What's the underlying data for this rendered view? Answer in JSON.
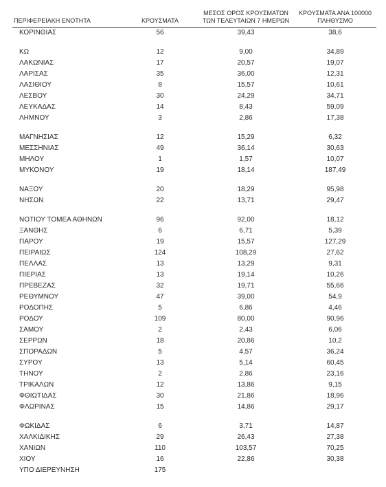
{
  "table": {
    "headers": {
      "region": "ΠΕΡΙΦΕΡΕΙΑΚΗ ΕΝΟΤΗΤΑ",
      "cases": "ΚΡΟΥΣΜΑΤΑ",
      "avg7": "ΜΕΣΟΣ ΟΡΟΣ ΚΡΟΥΣΜΑΤΩΝ ΤΩΝ ΤΕΛΕΥΤΑΙΩΝ 7 ΗΜΕΡΩΝ",
      "per100k": "ΚΡΟΥΣΜΑΤΑ ΑΝΑ 100000 ΠΛΗΘΥΣΜΟ"
    },
    "groups": [
      [
        {
          "region": "ΚΟΡΙΝΘΙΑΣ",
          "cases": "56",
          "avg7": "39,43",
          "per100k": "38,6"
        }
      ],
      [
        {
          "region": "ΚΩ",
          "cases": "12",
          "avg7": "9,00",
          "per100k": "34,89"
        },
        {
          "region": "ΛΑΚΩΝΙΑΣ",
          "cases": "17",
          "avg7": "20,57",
          "per100k": "19,07"
        },
        {
          "region": "ΛΑΡΙΣΑΣ",
          "cases": "35",
          "avg7": "36,00",
          "per100k": "12,31"
        },
        {
          "region": "ΛΑΣΙΘΙΟΥ",
          "cases": "8",
          "avg7": "15,57",
          "per100k": "10,61"
        },
        {
          "region": "ΛΕΣΒΟΥ",
          "cases": "30",
          "avg7": "24,29",
          "per100k": "34,71"
        },
        {
          "region": "ΛΕΥΚΑΔΑΣ",
          "cases": "14",
          "avg7": "8,43",
          "per100k": "59,09"
        },
        {
          "region": "ΛΗΜΝΟΥ",
          "cases": "3",
          "avg7": "2,86",
          "per100k": "17,38"
        }
      ],
      [
        {
          "region": "ΜΑΓΝΗΣΙΑΣ",
          "cases": "12",
          "avg7": "15,29",
          "per100k": "6,32"
        },
        {
          "region": "ΜΕΣΣΗΝΙΑΣ",
          "cases": "49",
          "avg7": "36,14",
          "per100k": "30,63"
        },
        {
          "region": "ΜΗΛΟΥ",
          "cases": "1",
          "avg7": "1,57",
          "per100k": "10,07"
        },
        {
          "region": "ΜΥΚΟΝΟΥ",
          "cases": "19",
          "avg7": "18,14",
          "per100k": "187,49"
        }
      ],
      [
        {
          "region": "ΝΑΞΟΥ",
          "cases": "20",
          "avg7": "18,29",
          "per100k": "95,98"
        },
        {
          "region": "ΝΗΣΩΝ",
          "cases": "22",
          "avg7": "13,71",
          "per100k": "29,47"
        }
      ],
      [
        {
          "region": "ΝΟΤΙΟΥ ΤΟΜΕΑ ΑΘΗΝΩΝ",
          "cases": "96",
          "avg7": "92,00",
          "per100k": "18,12"
        },
        {
          "region": "ΞΑΝΘΗΣ",
          "cases": "6",
          "avg7": "6,71",
          "per100k": "5,39"
        },
        {
          "region": "ΠΑΡΟΥ",
          "cases": "19",
          "avg7": "15,57",
          "per100k": "127,29"
        },
        {
          "region": "ΠΕΙΡΑΙΩΣ",
          "cases": "124",
          "avg7": "108,29",
          "per100k": "27,62"
        },
        {
          "region": "ΠΕΛΛΑΣ",
          "cases": "13",
          "avg7": "13,29",
          "per100k": "9,31"
        },
        {
          "region": "ΠΙΕΡΙΑΣ",
          "cases": "13",
          "avg7": "19,14",
          "per100k": "10,26"
        },
        {
          "region": "ΠΡΕΒΕΖΑΣ",
          "cases": "32",
          "avg7": "19,71",
          "per100k": "55,66"
        },
        {
          "region": "ΡΕΘΥΜΝΟΥ",
          "cases": "47",
          "avg7": "39,00",
          "per100k": "54,9"
        },
        {
          "region": "ΡΟΔΟΠΗΣ",
          "cases": "5",
          "avg7": "6,86",
          "per100k": "4,46"
        },
        {
          "region": "ΡΟΔΟΥ",
          "cases": "109",
          "avg7": "80,00",
          "per100k": "90,96"
        },
        {
          "region": "ΣΑΜΟΥ",
          "cases": "2",
          "avg7": "2,43",
          "per100k": "6,06"
        },
        {
          "region": "ΣΕΡΡΩΝ",
          "cases": "18",
          "avg7": "20,86",
          "per100k": "10,2"
        },
        {
          "region": "ΣΠΟΡΑΔΩΝ",
          "cases": "5",
          "avg7": "4,57",
          "per100k": "36,24"
        },
        {
          "region": "ΣΥΡΟΥ",
          "cases": "13",
          "avg7": "5,14",
          "per100k": "60,45"
        },
        {
          "region": "ΤΗΝΟΥ",
          "cases": "2",
          "avg7": "2,86",
          "per100k": "23,16"
        },
        {
          "region": "ΤΡΙΚΑΛΩΝ",
          "cases": "12",
          "avg7": "13,86",
          "per100k": "9,15"
        },
        {
          "region": "ΦΘΙΩΤΙΔΑΣ",
          "cases": "30",
          "avg7": "21,86",
          "per100k": "18,96"
        },
        {
          "region": "ΦΛΩΡΙΝΑΣ",
          "cases": "15",
          "avg7": "14,86",
          "per100k": "29,17"
        }
      ],
      [
        {
          "region": "ΦΩΚΙΔΑΣ",
          "cases": "6",
          "avg7": "3,71",
          "per100k": "14,87"
        },
        {
          "region": "ΧΑΛΚΙΔΙΚΗΣ",
          "cases": "29",
          "avg7": "26,43",
          "per100k": "27,38"
        },
        {
          "region": "ΧΑΝΙΩΝ",
          "cases": "110",
          "avg7": "103,57",
          "per100k": "70,25"
        },
        {
          "region": "ΧΙΟΥ",
          "cases": "16",
          "avg7": "22,86",
          "per100k": "30,38"
        },
        {
          "region": "ΥΠΟ ΔΙΕΡΕΥΝΗΣΗ",
          "cases": "175",
          "avg7": "",
          "per100k": ""
        }
      ]
    ]
  }
}
